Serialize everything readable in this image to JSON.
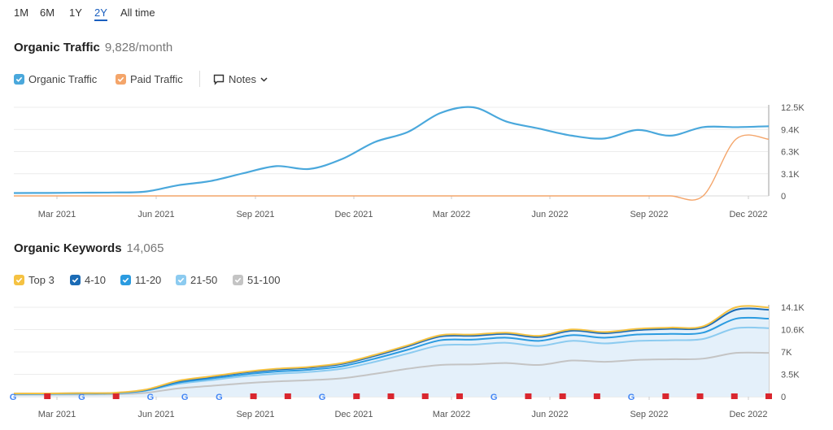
{
  "range": {
    "items": [
      "1M",
      "6M",
      "1Y",
      "2Y",
      "All time"
    ],
    "active": "2Y"
  },
  "traffic": {
    "title": "Organic Traffic",
    "value": "9,828/month",
    "legend": {
      "organic": "Organic Traffic",
      "paid": "Paid Traffic",
      "notes": "Notes"
    },
    "colors": {
      "organic": "#4aa8dc",
      "paid": "#f4a56a"
    }
  },
  "keywords": {
    "title": "Organic Keywords",
    "value": "14,065",
    "legend": [
      "Top 3",
      "4-10",
      "11-20",
      "21-50",
      "51-100"
    ],
    "colors": [
      "#f5c242",
      "#1b6bb5",
      "#2b9be0",
      "#8ccbf0",
      "#c4c4c4"
    ]
  },
  "xaxis": [
    "Mar 2021",
    "Jun 2021",
    "Sep 2021",
    "Dec 2021",
    "Mar 2022",
    "Jun 2022",
    "Sep 2022",
    "Dec 2022"
  ],
  "chart_data": [
    {
      "type": "line",
      "title": "Organic Traffic",
      "y_ticks": [
        "12.5K",
        "9.4K",
        "6.3K",
        "3.1K",
        "0"
      ],
      "ylim": [
        0,
        12500
      ],
      "x": [
        0,
        1,
        2,
        3,
        4,
        5,
        6,
        7,
        8,
        9,
        10,
        11,
        12,
        13,
        14,
        15,
        16,
        17,
        18,
        19,
        20,
        21,
        22,
        23
      ],
      "x_tick_labels": [
        "Mar 2021",
        "Jun 2021",
        "Sep 2021",
        "Dec 2021",
        "Mar 2022",
        "Jun 2022",
        "Sep 2022",
        "Dec 2022"
      ],
      "series": [
        {
          "name": "Organic Traffic",
          "values": [
            400,
            420,
            450,
            480,
            600,
            1500,
            2100,
            3200,
            4200,
            3800,
            5200,
            7600,
            9000,
            11700,
            12500,
            10500,
            9500,
            8500,
            8100,
            9300,
            8500,
            9700,
            9700,
            9828
          ]
        },
        {
          "name": "Paid Traffic",
          "values": [
            0,
            0,
            0,
            0,
            0,
            0,
            0,
            0,
            0,
            0,
            0,
            0,
            0,
            0,
            0,
            0,
            0,
            0,
            0,
            0,
            0,
            0,
            8000,
            8000
          ]
        }
      ]
    },
    {
      "type": "area",
      "title": "Organic Keywords",
      "y_ticks": [
        "14.1K",
        "10.6K",
        "7K",
        "3.5K",
        "0"
      ],
      "ylim": [
        0,
        14100
      ],
      "x": [
        0,
        1,
        2,
        3,
        4,
        5,
        6,
        7,
        8,
        9,
        10,
        11,
        12,
        13,
        14,
        15,
        16,
        17,
        18,
        19,
        20,
        21,
        22,
        23
      ],
      "x_tick_labels": [
        "Mar 2021",
        "Jun 2021",
        "Sep 2021",
        "Dec 2021",
        "Mar 2022",
        "Jun 2022",
        "Sep 2022",
        "Dec 2022"
      ],
      "series": [
        {
          "name": "Top 3",
          "values": [
            500,
            520,
            560,
            600,
            1100,
            2500,
            3200,
            3900,
            4400,
            4700,
            5300,
            6600,
            8100,
            9700,
            9800,
            10100,
            9600,
            10600,
            10200,
            10700,
            10900,
            11100,
            14100,
            14065
          ]
        },
        {
          "name": "4-10",
          "values": [
            480,
            500,
            540,
            580,
            1050,
            2400,
            3080,
            3780,
            4260,
            4560,
            5150,
            6430,
            7930,
            9500,
            9600,
            9900,
            9400,
            10400,
            10000,
            10500,
            10700,
            10900,
            13700,
            13700
          ]
        },
        {
          "name": "11-20",
          "values": [
            440,
            460,
            500,
            540,
            980,
            2200,
            2850,
            3500,
            3950,
            4250,
            4800,
            6000,
            7400,
            8900,
            9000,
            9300,
            8800,
            9700,
            9300,
            9800,
            9900,
            10100,
            12300,
            12300
          ]
        },
        {
          "name": "21-50",
          "values": [
            400,
            420,
            450,
            490,
            900,
            2000,
            2600,
            3200,
            3600,
            3900,
            4400,
            5500,
            6800,
            8100,
            8200,
            8500,
            8000,
            8800,
            8400,
            8800,
            8900,
            9100,
            10800,
            10800
          ]
        },
        {
          "name": "51-100",
          "values": [
            300,
            320,
            340,
            370,
            600,
            1300,
            1700,
            2100,
            2400,
            2600,
            2900,
            3600,
            4400,
            5000,
            5100,
            5300,
            5000,
            5700,
            5500,
            5800,
            5900,
            6000,
            6900,
            6900
          ]
        }
      ],
      "markers": [
        "G",
        "flag",
        "G",
        "flag",
        "G",
        "G",
        "G",
        "flag",
        "flag",
        "G",
        "flag",
        "flag",
        "flag",
        "flag",
        "G",
        "flag",
        "flag",
        "flag",
        "G",
        "flag",
        "flag",
        "flag",
        "flag"
      ]
    }
  ]
}
